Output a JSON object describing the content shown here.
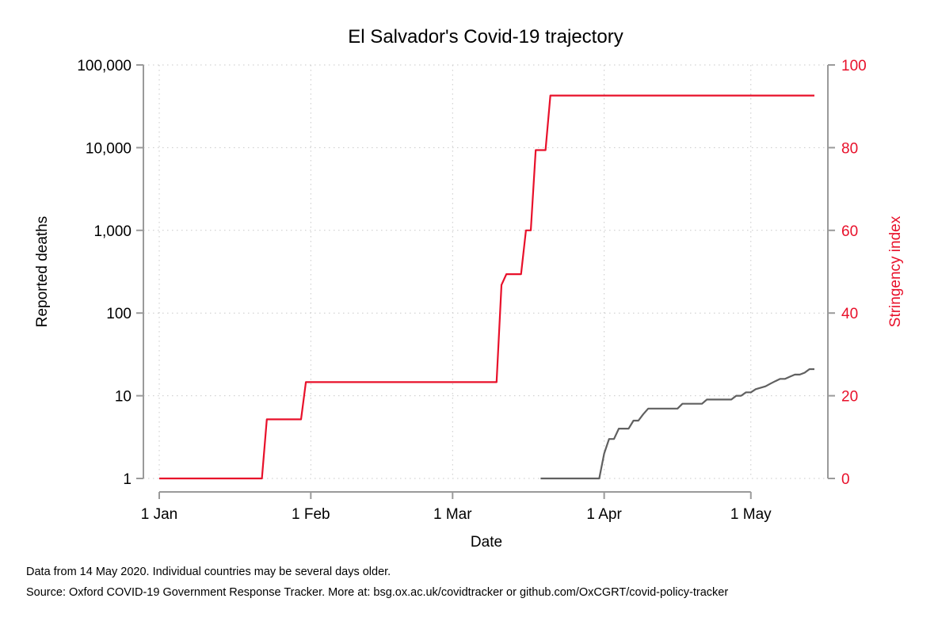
{
  "chart_data": {
    "type": "line",
    "title": "El Salvador's Covid-19 trajectory",
    "xlabel": "Date",
    "ylabel_left": "Reported deaths",
    "ylabel_right": "Stringency index",
    "x_ticks": [
      {
        "label": "1 Jan",
        "day": 0
      },
      {
        "label": "1 Feb",
        "day": 31
      },
      {
        "label": "1 Mar",
        "day": 60
      },
      {
        "label": "1 Apr",
        "day": 91
      },
      {
        "label": "1 May",
        "day": 121
      }
    ],
    "xlim": [
      0,
      134
    ],
    "y_left": {
      "scale": "log",
      "lim": [
        1,
        100000
      ],
      "tick_values": [
        1,
        10,
        100,
        1000,
        10000,
        100000
      ],
      "tick_labels": [
        "1",
        "10",
        "100",
        "1,000",
        "10,000",
        "100,000"
      ]
    },
    "y_right": {
      "scale": "linear",
      "lim": [
        0,
        100
      ],
      "tick_values": [
        0,
        20,
        40,
        60,
        80,
        100
      ],
      "tick_labels": [
        "0",
        "20",
        "40",
        "60",
        "80",
        "100"
      ]
    },
    "grid": true,
    "colors": {
      "stringency": "#e8102a",
      "deaths": "#606060",
      "axis": "#9a9a9a",
      "grid": "#c8c8c8"
    },
    "series": [
      {
        "name": "Stringency index",
        "axis": "right",
        "color": "#e8102a",
        "points": [
          [
            0,
            0
          ],
          [
            21,
            0
          ],
          [
            22,
            14.3
          ],
          [
            29,
            14.3
          ],
          [
            30,
            23.3
          ],
          [
            69,
            23.3
          ],
          [
            70,
            46.8
          ],
          [
            71,
            49.4
          ],
          [
            74,
            49.4
          ],
          [
            75,
            60
          ],
          [
            76,
            60
          ],
          [
            77,
            79.4
          ],
          [
            79,
            79.4
          ],
          [
            80,
            92.6
          ],
          [
            134,
            92.6
          ]
        ]
      },
      {
        "name": "Reported deaths",
        "axis": "left",
        "color": "#606060",
        "points": [
          [
            78,
            1
          ],
          [
            90,
            1
          ],
          [
            91,
            2
          ],
          [
            92,
            3
          ],
          [
            93,
            3
          ],
          [
            94,
            4
          ],
          [
            96,
            4
          ],
          [
            97,
            5
          ],
          [
            98,
            5
          ],
          [
            99,
            6
          ],
          [
            100,
            7
          ],
          [
            106,
            7
          ],
          [
            107,
            8
          ],
          [
            111,
            8
          ],
          [
            112,
            9
          ],
          [
            117,
            9
          ],
          [
            118,
            10
          ],
          [
            119,
            10
          ],
          [
            120,
            11
          ],
          [
            121,
            11
          ],
          [
            122,
            12
          ],
          [
            124,
            13
          ],
          [
            125,
            14
          ],
          [
            126,
            15
          ],
          [
            127,
            16
          ],
          [
            128,
            16
          ],
          [
            129,
            17
          ],
          [
            130,
            18
          ],
          [
            131,
            18
          ],
          [
            132,
            19
          ],
          [
            133,
            21
          ],
          [
            134,
            21
          ]
        ]
      }
    ]
  },
  "notes": {
    "line1": "Data from 14 May 2020. Individual countries may be several days older.",
    "line2": "Source: Oxford COVID-19 Government Response Tracker. More at: bsg.ox.ac.uk/covidtracker or github.com/OxCGRT/covid-policy-tracker"
  }
}
